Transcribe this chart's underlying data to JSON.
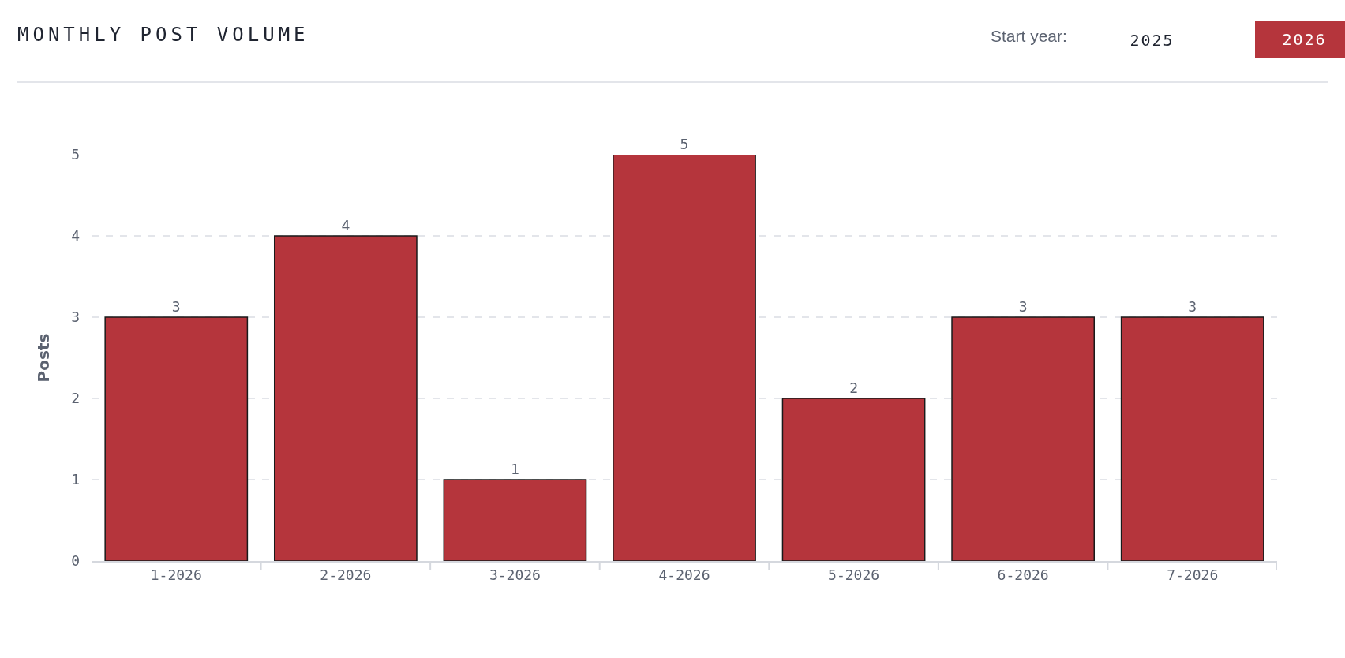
{
  "chart_data": {
    "type": "bar",
    "title": "MONTHLY POST VOLUME",
    "annotations": [
      "Start year:",
      "2025",
      "2026"
    ],
    "categories": [
      "1-2026",
      "2-2026",
      "3-2026",
      "4-2026",
      "5-2026",
      "6-2026",
      "7-2026"
    ],
    "values": [
      3,
      4,
      1,
      5,
      2,
      3,
      3
    ],
    "color": "#b5353c",
    "ylabel": "Posts",
    "ylim": [
      0,
      5
    ],
    "yticks": [
      0,
      1,
      2,
      3,
      4,
      5
    ],
    "grid": "y",
    "data_labels": true
  }
}
